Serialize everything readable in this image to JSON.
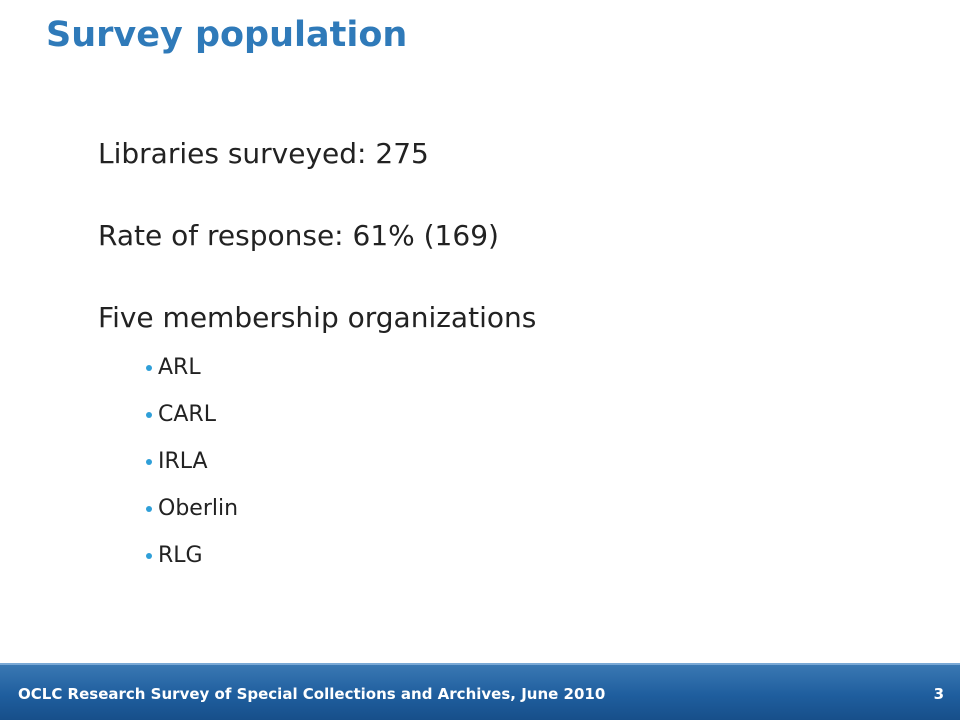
{
  "slide": {
    "title": "Survey population",
    "points": [
      "Libraries surveyed: 275",
      "Rate of response: 61% (169)",
      "Five membership organizations"
    ],
    "organizations": [
      "ARL",
      "CARL",
      "IRLA",
      "Oberlin",
      "RLG"
    ]
  },
  "footer": {
    "text": "OCLC Research Survey of Special Collections and Archives, June 2010",
    "page_number": "3"
  },
  "colors": {
    "title": "#2f7ab9",
    "bullet": "#2f9fd8",
    "footer_bar": "#1f5e9e"
  }
}
